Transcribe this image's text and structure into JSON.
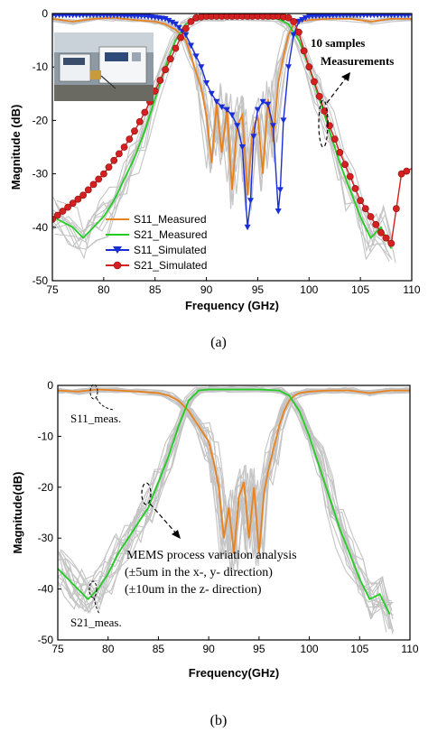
{
  "chart_data": [
    {
      "type": "line",
      "panel_label": "(a)",
      "xlabel": "Frequency (GHz)",
      "ylabel": "Magnitude (dB)",
      "xlim": [
        75,
        110
      ],
      "ylim": [
        -50,
        0
      ],
      "x_ticks": [
        75,
        80,
        85,
        90,
        95,
        100,
        105,
        110
      ],
      "y_ticks": [
        0,
        -10,
        -20,
        -30,
        -40,
        -50
      ],
      "legend_position": "bottom-left",
      "inset_photo": "measurement-setup-photo",
      "annotations": [
        "10 samples",
        "Measurements"
      ],
      "series": [
        {
          "name": "S11_Measured",
          "color": "#e8821e",
          "marker": "none",
          "x": [
            75,
            77,
            79,
            81,
            83,
            85,
            86,
            87,
            88,
            88.5,
            89,
            89.5,
            90,
            90.5,
            91,
            91.5,
            92,
            92.5,
            93,
            93.5,
            94,
            94.5,
            95,
            95.5,
            96,
            96.5,
            97,
            97.5,
            98,
            98.5,
            99,
            100,
            102,
            104,
            106,
            108,
            110
          ],
          "y": [
            -1,
            -1.5,
            -1,
            -0.8,
            -1.2,
            -1.5,
            -2,
            -3,
            -5,
            -8,
            -11,
            -14,
            -19,
            -28,
            -17,
            -26,
            -18,
            -33,
            -21,
            -19,
            -34,
            -22,
            -19,
            -30,
            -16,
            -24,
            -13,
            -8,
            -4,
            -2,
            -1.5,
            -1.2,
            -1,
            -1,
            -1.5,
            -1,
            -1
          ]
        },
        {
          "name": "S21_Measured",
          "color": "#22cc22",
          "marker": "none",
          "x": [
            75,
            77,
            78,
            79,
            80,
            81,
            82,
            83,
            84,
            85,
            86,
            87,
            88,
            89,
            90,
            92,
            95,
            97,
            98,
            99,
            100,
            101,
            102,
            103,
            104,
            105,
            106,
            107,
            108
          ],
          "y": [
            -38,
            -40,
            -42,
            -40,
            -38,
            -35,
            -31,
            -27,
            -22,
            -16,
            -10,
            -5,
            -2,
            -1,
            -0.8,
            -0.8,
            -0.8,
            -1,
            -2,
            -5,
            -10,
            -16,
            -22,
            -28,
            -33,
            -38,
            -42,
            -40,
            -44
          ]
        },
        {
          "name": "S11_Simulated",
          "color": "#1a2ed8",
          "marker": "triangle-down",
          "x": [
            75,
            78,
            81,
            84,
            86,
            87,
            88,
            88.5,
            89,
            89.5,
            90,
            90.5,
            91,
            91.5,
            92,
            92.5,
            93,
            93.5,
            94,
            94.3,
            94.6,
            95,
            95.5,
            96,
            96.5,
            97,
            97.2,
            97.5,
            98,
            98.5,
            99,
            100,
            103,
            106,
            109,
            110
          ],
          "y": [
            -0.3,
            -0.3,
            -0.3,
            -0.5,
            -1,
            -2,
            -4,
            -6,
            -8,
            -10,
            -13,
            -15,
            -16.5,
            -17.5,
            -18,
            -19,
            -21,
            -25,
            -40,
            -35,
            -23,
            -18,
            -16.5,
            -17,
            -21,
            -37,
            -33,
            -20,
            -10,
            -4,
            -1.5,
            -0.5,
            -0.3,
            -0.3,
            -0.3,
            -0.3
          ]
        },
        {
          "name": "S21_Simulated",
          "color": "#d42020",
          "marker": "circle",
          "x": [
            75,
            76,
            77,
            78,
            79,
            80,
            81,
            82,
            83,
            84,
            85,
            86,
            87,
            87.5,
            88,
            88.5,
            89,
            90,
            92,
            95,
            97,
            98,
            98.5,
            99,
            99.5,
            100,
            101,
            102,
            103,
            104,
            105,
            106,
            107,
            108,
            109,
            110
          ],
          "y": [
            -38.5,
            -37,
            -35.5,
            -34,
            -32,
            -30,
            -27.5,
            -25,
            -22,
            -18.5,
            -14.5,
            -10.5,
            -6.5,
            -4.5,
            -2.8,
            -1.5,
            -0.8,
            -0.5,
            -0.5,
            -0.5,
            -0.5,
            -0.8,
            -1.5,
            -3.5,
            -7,
            -10,
            -15.5,
            -21,
            -26,
            -30.5,
            -35,
            -38,
            -41,
            -43,
            -30,
            -29
          ]
        }
      ]
    },
    {
      "type": "line",
      "panel_label": "(b)",
      "xlabel": "Frequency(GHz)",
      "ylabel": "Magnitude(dB)",
      "xlim": [
        75,
        110
      ],
      "ylim": [
        -50,
        0
      ],
      "x_ticks": [
        75,
        80,
        85,
        90,
        95,
        100,
        105,
        110
      ],
      "y_ticks": [
        0,
        -10,
        -20,
        -30,
        -40,
        -50
      ],
      "annotations": [
        "S11_meas.",
        "S21_meas.",
        "MEMS process variation analysis",
        "(±5um in the x-, y- direction)",
        "(±10um in the z- direction)"
      ],
      "series": [
        {
          "name": "S11_meas.",
          "color": "#e8821e",
          "x": [
            75,
            77,
            79,
            81,
            83,
            85,
            86,
            87,
            88,
            89,
            90,
            90.5,
            91,
            91.5,
            92,
            92.5,
            93,
            93.5,
            94,
            94.5,
            95,
            95.5,
            96,
            96.5,
            97,
            97.5,
            98,
            98.5,
            99,
            100,
            102,
            104,
            106,
            108,
            110
          ],
          "y": [
            -1,
            -1.2,
            -0.8,
            -1,
            -1.2,
            -1.5,
            -2,
            -3,
            -5,
            -8,
            -11,
            -15,
            -20,
            -30,
            -24,
            -33,
            -22,
            -19,
            -30,
            -20,
            -33,
            -21,
            -16,
            -12,
            -8,
            -5,
            -3,
            -2,
            -1.5,
            -1.2,
            -1,
            -1,
            -1.5,
            -1,
            -1
          ]
        },
        {
          "name": "S21_meas.",
          "color": "#22cc22",
          "x": [
            75,
            76,
            77,
            78,
            79,
            80,
            81,
            82,
            83,
            84,
            85,
            86,
            87,
            88,
            89,
            90,
            92,
            95,
            97,
            98,
            99,
            100,
            101,
            102,
            103,
            104,
            105,
            106,
            107,
            108
          ],
          "y": [
            -36,
            -38,
            -40,
            -42,
            -40,
            -37,
            -33,
            -30,
            -27,
            -24,
            -19,
            -14,
            -8,
            -3,
            -1,
            -0.8,
            -0.8,
            -0.8,
            -1,
            -2,
            -5,
            -10,
            -16,
            -22,
            -28,
            -33,
            -38,
            -42,
            -41,
            -45
          ]
        }
      ]
    }
  ]
}
